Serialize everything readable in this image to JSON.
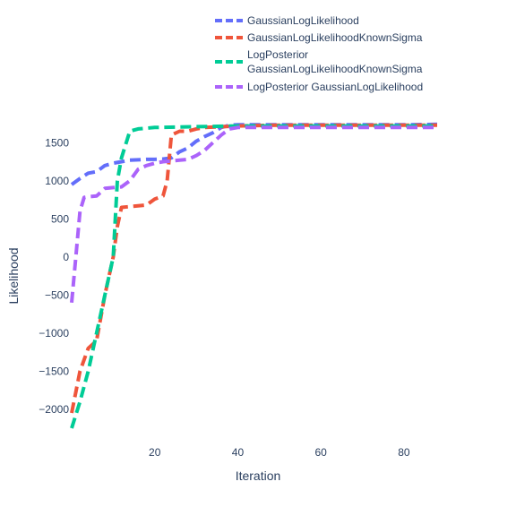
{
  "chart_data": {
    "type": "line",
    "xlabel": "Iteration",
    "ylabel": "Likelihood",
    "xlim": [
      0,
      88
    ],
    "ylim": [
      -2250,
      1750
    ],
    "xticks": [
      20,
      40,
      60,
      80
    ],
    "xtick_labels": [
      "20",
      "40",
      "60",
      "80"
    ],
    "yticks": [
      -2000,
      -1500,
      -1000,
      -500,
      0,
      500,
      1000,
      1500
    ],
    "ytick_labels": [
      "−2000",
      "−1500",
      "−1000",
      "−500",
      "0",
      "500",
      "1000",
      "1500"
    ],
    "grid": false,
    "legend_position": "top-right",
    "series": [
      {
        "name": "GaussianLogLikelihood",
        "color": "#636efa",
        "dash": "dash",
        "x": [
          0,
          2,
          4,
          6,
          8,
          10,
          12,
          14,
          16,
          18,
          20,
          22,
          24,
          26,
          28,
          30,
          32,
          34,
          36,
          38,
          40,
          50,
          60,
          70,
          80,
          88
        ],
        "y": [
          950,
          1030,
          1100,
          1120,
          1200,
          1230,
          1250,
          1270,
          1275,
          1280,
          1280,
          1285,
          1300,
          1380,
          1430,
          1520,
          1580,
          1630,
          1700,
          1730,
          1735,
          1735,
          1735,
          1735,
          1735,
          1740
        ]
      },
      {
        "name": "GaussianLogLikelihoodKnownSigma",
        "color": "#ef553b",
        "dash": "dash",
        "x": [
          0,
          2,
          4,
          6,
          8,
          10,
          11,
          12,
          14,
          16,
          18,
          20,
          22,
          23,
          24,
          26,
          28,
          30,
          32,
          40,
          50,
          60,
          70,
          80,
          88
        ],
        "y": [
          -2050,
          -1500,
          -1200,
          -1100,
          -500,
          0,
          400,
          650,
          660,
          670,
          680,
          760,
          800,
          1000,
          1600,
          1650,
          1650,
          1680,
          1700,
          1720,
          1730,
          1730,
          1730,
          1730,
          1730
        ]
      },
      {
        "name": "LogPosterior GaussianLogLikelihoodKnownSigma",
        "color": "#00cc96",
        "dash": "dash",
        "x": [
          0,
          2,
          4,
          6,
          8,
          10,
          11,
          12,
          14,
          16,
          18,
          20,
          30,
          40,
          50,
          60,
          70,
          80,
          88
        ],
        "y": [
          -2250,
          -1900,
          -1500,
          -1000,
          -500,
          0,
          1000,
          1300,
          1650,
          1680,
          1690,
          1700,
          1710,
          1720,
          1720,
          1720,
          1720,
          1720,
          1720
        ]
      },
      {
        "name": "LogPosterior GaussianLogLikelihood",
        "color": "#ab63fa",
        "dash": "dash",
        "x": [
          0,
          2,
          3,
          4,
          6,
          8,
          10,
          12,
          14,
          16,
          18,
          20,
          22,
          24,
          26,
          28,
          30,
          32,
          34,
          36,
          38,
          40,
          50,
          60,
          70,
          80,
          88
        ],
        "y": [
          -600,
          600,
          780,
          790,
          800,
          900,
          910,
          920,
          1000,
          1150,
          1200,
          1230,
          1250,
          1260,
          1270,
          1280,
          1330,
          1400,
          1500,
          1600,
          1680,
          1700,
          1700,
          1700,
          1700,
          1700,
          1700
        ]
      }
    ]
  },
  "legend": {
    "items": [
      {
        "lines": [
          "GaussianLogLikelihood"
        ],
        "color": "#636efa"
      },
      {
        "lines": [
          "GaussianLogLikelihoodKnownSigma"
        ],
        "color": "#ef553b"
      },
      {
        "lines": [
          "LogPosterior",
          "GaussianLogLikelihoodKnownSigma"
        ],
        "color": "#00cc96"
      },
      {
        "lines": [
          "LogPosterior GaussianLogLikelihood"
        ],
        "color": "#ab63fa"
      }
    ]
  }
}
